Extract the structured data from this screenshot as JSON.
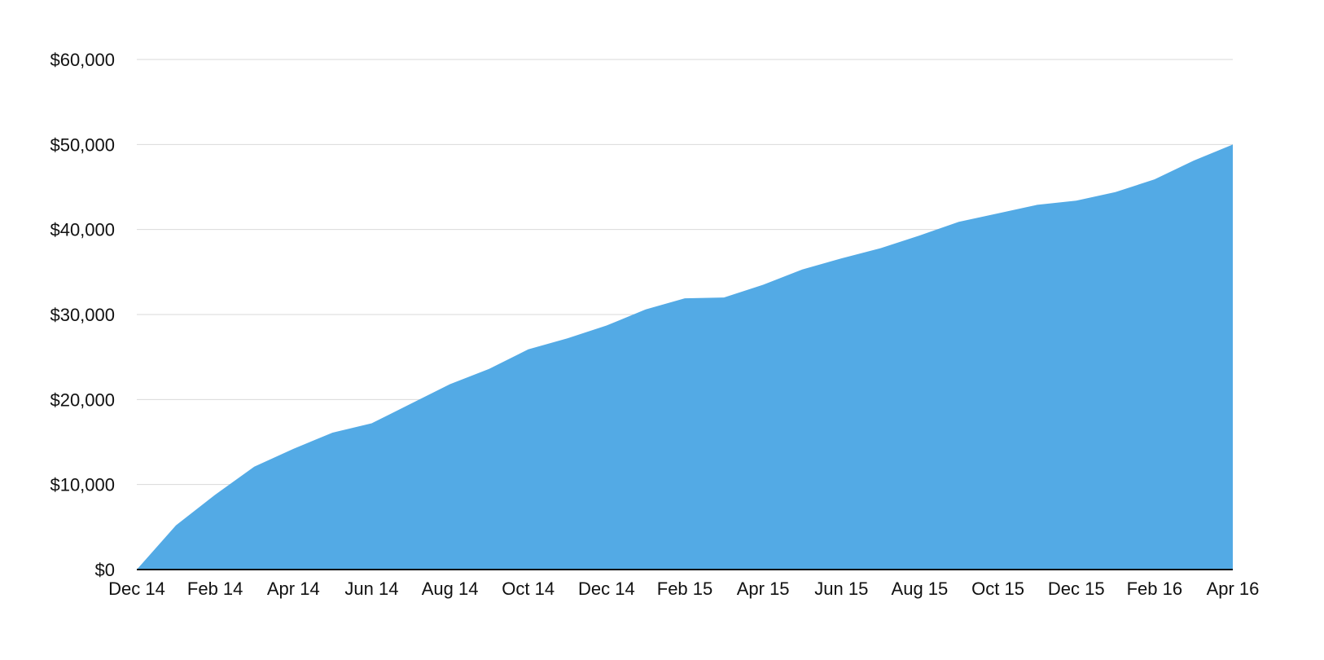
{
  "chart_data": {
    "type": "area",
    "title": "",
    "xlabel": "",
    "ylabel": "",
    "x_tick_labels": [
      "Dec 14",
      "Feb 14",
      "Apr 14",
      "Jun 14",
      "Aug 14",
      "Oct 14",
      "Dec 14",
      "Feb 15",
      "Apr 15",
      "Jun 15",
      "Aug 15",
      "Oct 15",
      "Dec 15",
      "Feb 16",
      "Apr 16"
    ],
    "y_tick_labels": [
      "$0",
      "$10,000",
      "$20,000",
      "$30,000",
      "$40,000",
      "$50,000",
      "$60,000"
    ],
    "ylim": [
      0,
      60000
    ],
    "grid": true,
    "legend": "none",
    "color": "#53aae5",
    "series": [
      {
        "values": [
          0,
          5200,
          8800,
          12100,
          14200,
          16100,
          17200,
          19500,
          21800,
          23600,
          25900,
          27200,
          28700,
          30600,
          31900,
          32000,
          33500,
          35300,
          36600,
          37800,
          39300,
          40900,
          41900,
          42900,
          43400,
          44400,
          45900,
          48100,
          50000
        ]
      }
    ]
  }
}
